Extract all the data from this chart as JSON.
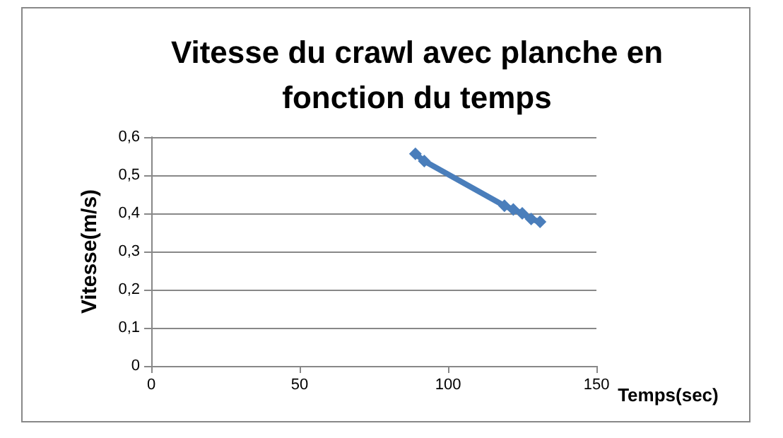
{
  "chart_data": {
    "type": "line",
    "title": "Vitesse du crawl avec planche en\nfonction du temps",
    "xlabel": "Temps(sec)",
    "ylabel": "Vitesse(m/s)",
    "x": [
      89,
      92,
      119,
      122,
      125,
      128,
      131
    ],
    "series": [
      {
        "color": "#4a7ebb",
        "values": [
          0.556,
          0.537,
          0.42,
          0.41,
          0.4,
          0.385,
          0.378
        ]
      }
    ],
    "xlim": [
      0,
      150
    ],
    "xticks": [
      0,
      50,
      100,
      150
    ],
    "ylim": [
      0,
      0.6
    ],
    "yticks": [
      0,
      {
        "value": 0.1,
        "label": "0,1"
      },
      {
        "value": 0.2,
        "label": "0,2"
      },
      {
        "value": 0.3,
        "label": "0,3"
      },
      {
        "value": 0.4,
        "label": "0,4"
      },
      {
        "value": 0.5,
        "label": "0,5"
      },
      {
        "value": 0.6,
        "label": "0,6"
      }
    ],
    "grid": "y",
    "marker": "diamond",
    "line_style": "solid"
  }
}
